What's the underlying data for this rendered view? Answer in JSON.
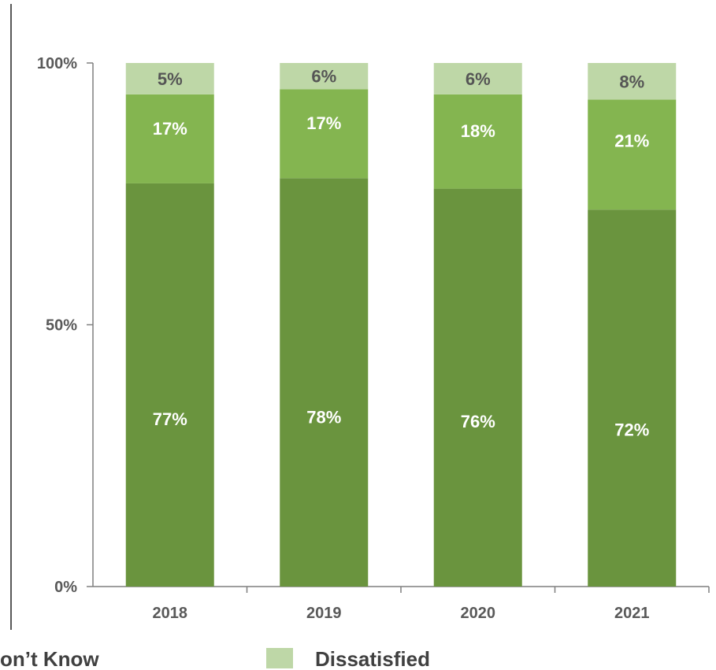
{
  "chart_data": {
    "type": "bar",
    "stacked": true,
    "categories": [
      "2018",
      "2019",
      "2020",
      "2021"
    ],
    "series": [
      {
        "values": [
          77,
          78,
          76,
          72
        ],
        "labels": [
          "77%",
          "78%",
          "76%",
          "72%"
        ]
      },
      {
        "values": [
          17,
          17,
          18,
          21
        ],
        "labels": [
          "17%",
          "17%",
          "18%",
          "21%"
        ]
      },
      {
        "name": "Dissatisfied",
        "values": [
          5,
          6,
          6,
          8
        ],
        "labels": [
          "5%",
          "6%",
          "6%",
          "8%"
        ]
      }
    ],
    "ylim": [
      0,
      100
    ],
    "yticks": [
      "0%",
      "50%",
      "100%"
    ],
    "colors": [
      "#6a943e",
      "#84b550",
      "#bed7a7"
    ],
    "label_colors": [
      "#ffffff",
      "#ffffff",
      "#555555"
    ],
    "grid": false,
    "legend": {
      "position": "bottom",
      "entries": [
        {
          "label": "on’t Know",
          "swatch": false
        },
        {
          "label": "Dissatisfied",
          "color": "#bed7a7",
          "swatch": true
        }
      ]
    }
  }
}
